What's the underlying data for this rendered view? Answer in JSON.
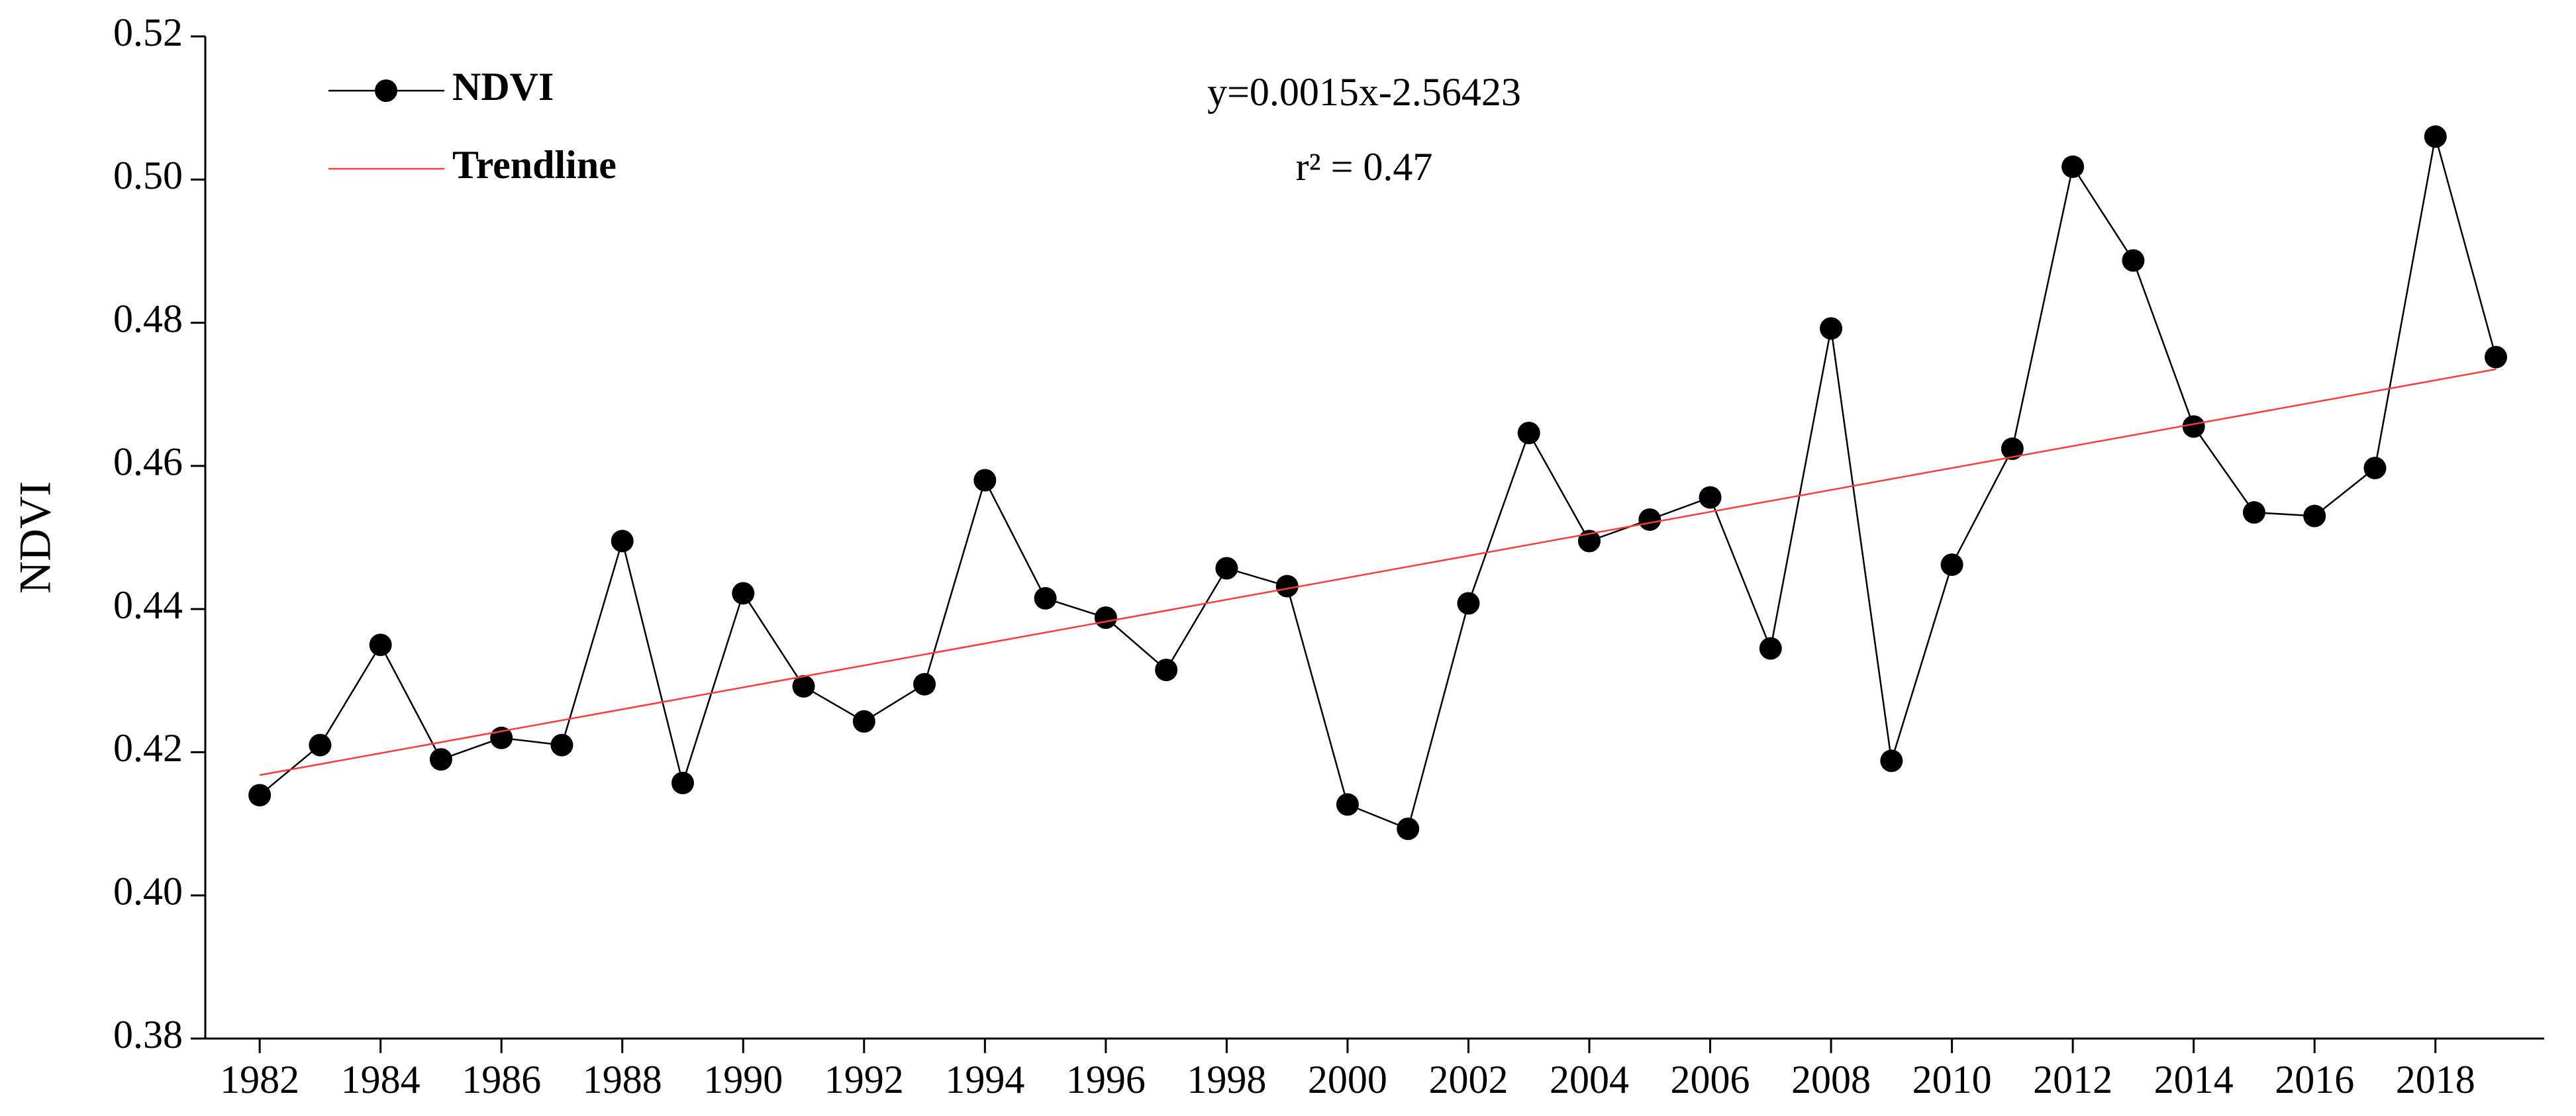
{
  "chart_data": {
    "type": "line",
    "y_label": "NDVI",
    "annotations": [
      "y=0.0015x-2.56423",
      "r² = 0.47"
    ],
    "x": [
      1982,
      1983,
      1984,
      1985,
      1986,
      1987,
      1988,
      1989,
      1990,
      1991,
      1992,
      1993,
      1994,
      1995,
      1996,
      1997,
      1998,
      1999,
      2000,
      2001,
      2002,
      2003,
      2004,
      2005,
      2006,
      2007,
      2008,
      2009,
      2010,
      2011,
      2012,
      2013,
      2014,
      2015,
      2016,
      2017,
      2018,
      2019
    ],
    "series": [
      {
        "name": "NDVI",
        "color": "#000000",
        "values": [
          0.414,
          0.421,
          0.435,
          0.419,
          0.422,
          0.421,
          0.4495,
          0.4157,
          0.4422,
          0.4292,
          0.4243,
          0.4295,
          0.458,
          0.4415,
          0.4388,
          0.4315,
          0.4457,
          0.4432,
          0.4127,
          0.4093,
          0.4408,
          0.4646,
          0.4495,
          0.4525,
          0.4556,
          0.4345,
          0.4792,
          0.4188,
          0.4462,
          0.4624,
          0.5018,
          0.4887,
          0.4655,
          0.4535,
          0.453,
          0.4597,
          0.506,
          0.4752
        ]
      },
      {
        "name": "Trendline",
        "color": "#ff3b3b",
        "x": [
          1982,
          2019
        ],
        "values": [
          0.4168,
          0.4735
        ]
      }
    ],
    "xlim": [
      1981.1,
      2019.8
    ],
    "xticks": [
      1982,
      1984,
      1986,
      1988,
      1990,
      1992,
      1994,
      1996,
      1998,
      2000,
      2002,
      2004,
      2006,
      2008,
      2010,
      2012,
      2014,
      2016,
      2018
    ],
    "ylim": [
      0.38,
      0.52
    ],
    "yticks": [
      0.38,
      {
        "value": 0.4,
        "label": "0.40"
      },
      0.42,
      0.44,
      0.46,
      0.48,
      {
        "value": 0.5,
        "label": "0.50"
      },
      0.52
    ],
    "legend": "upper left"
  }
}
